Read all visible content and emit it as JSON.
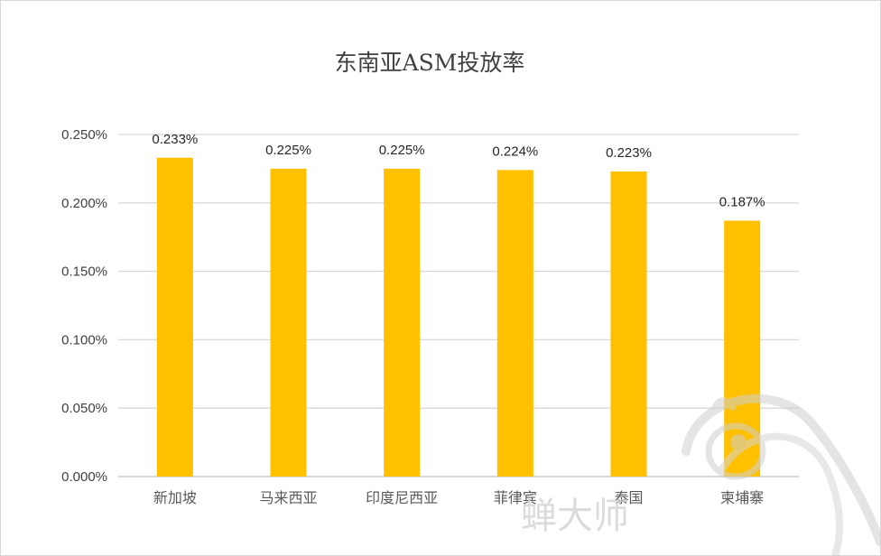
{
  "chart_data": {
    "type": "bar",
    "title": "东南亚ASM投放率",
    "categories": [
      "新加坡",
      "马来西亚",
      "印度尼西亚",
      "菲律宾",
      "泰国",
      "柬埔寨"
    ],
    "values": [
      0.233,
      0.225,
      0.225,
      0.224,
      0.223,
      0.187
    ],
    "data_labels": [
      "0.233%",
      "0.225%",
      "0.225%",
      "0.224%",
      "0.223%",
      "0.187%"
    ],
    "ylim": [
      0,
      0.25
    ],
    "yticks": [
      0,
      0.05,
      0.1,
      0.15,
      0.2,
      0.25
    ],
    "ytick_labels": [
      "0.000%",
      "0.050%",
      "0.100%",
      "0.150%",
      "0.200%",
      "0.250%"
    ],
    "unit": "%",
    "grid": true,
    "bar_color": "#FFC000",
    "xlabel": "",
    "ylabel": ""
  },
  "watermark": {
    "text": "蝉大师"
  }
}
